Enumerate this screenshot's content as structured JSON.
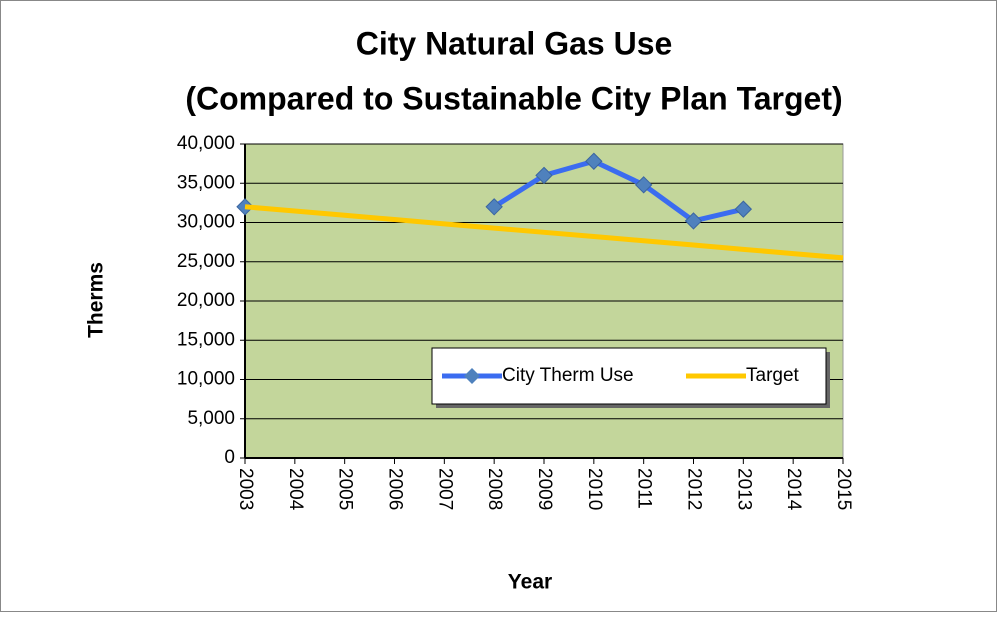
{
  "chart_data": {
    "type": "line",
    "title": "City Natural Gas Use",
    "subtitle": "(Compared to Sustainable City Plan Target)",
    "y_label": "Therms",
    "x_label": "Year",
    "categories": [
      "2003",
      "2004",
      "2005",
      "2006",
      "2007",
      "2008",
      "2009",
      "2010",
      "2011",
      "2012",
      "2013",
      "2014",
      "2015"
    ],
    "series": [
      {
        "name": "City Therm Use",
        "color": "#3b6cf0",
        "marker_color": "#4f81bd",
        "values": [
          32000,
          null,
          null,
          null,
          null,
          32000,
          36000,
          37800,
          34800,
          30200,
          31700,
          null,
          null
        ]
      },
      {
        "name": "Target",
        "color": "#ffc800",
        "values": [
          32000,
          31460,
          30920,
          30380,
          29830,
          29290,
          28750,
          28210,
          27670,
          27130,
          26580,
          26040,
          25500
        ]
      }
    ],
    "ylim": [
      0,
      40000
    ],
    "yticks": [
      0,
      {
        "value": 5000,
        "label": "5,000"
      },
      {
        "value": 10000,
        "label": "10,000"
      },
      {
        "value": 15000,
        "label": "15,000"
      },
      {
        "value": 20000,
        "label": "20,000"
      },
      {
        "value": 25000,
        "label": "25,000"
      },
      {
        "value": 30000,
        "label": "30,000"
      },
      {
        "value": 35000,
        "label": "35,000"
      },
      {
        "value": 40000,
        "label": "40,000"
      }
    ],
    "grid": true,
    "plot_background": "#c3d69b",
    "legend": "bottom-right"
  }
}
